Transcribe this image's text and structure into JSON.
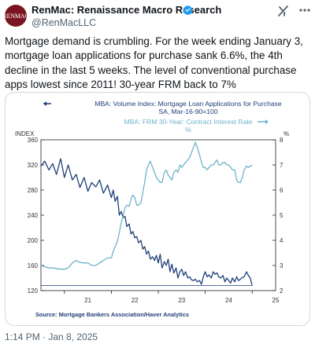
{
  "author": {
    "display_name": "RenMac: Renaissance Macro Research",
    "handle": "@RenMacLLC",
    "avatar_text": "RENMAC",
    "verified_icon": "verified-badge-icon",
    "brand_color": "#7a1420"
  },
  "tweet": {
    "text": "Mortgage demand is crumbling. For the week ending January 3, mortgage loan applications for purchase sank 6.6%, the 4th decline in the last 5 weeks. The level of conventional purchase apps lowest since 2011! 30-year FRM back to 7%",
    "timestamp": "1:14 PM · Jan 8, 2025"
  },
  "icons": {
    "grok": "grok-icon",
    "more": "more-icon"
  },
  "colors": {
    "text": "#0f1419",
    "secondary": "#536471",
    "series_volume": "#1f3f78",
    "series_rate": "#6fb3c8"
  },
  "chart_data": {
    "type": "line",
    "legend": [
      "MBA: Volume Index: Mortgage Loan Applications for Purchase",
      "SA, Mar-16-90=100",
      "MBA: FRM 30-Year: Contract Interest Rate",
      "%"
    ],
    "left_axis_title": "INDEX",
    "right_axis_title": "%",
    "left_ticks": [
      "360",
      "320",
      "280",
      "240",
      "200",
      "160",
      "120"
    ],
    "right_ticks": [
      "8",
      "7",
      "6",
      "5",
      "4",
      "3",
      "2"
    ],
    "x_ticks": [
      "21",
      "22",
      "23",
      "24",
      "25"
    ],
    "source": "Source:  Mortgage Bankers Association/Haver Analytics",
    "xlim": [
      2020.5,
      2025.5
    ],
    "ylim_left": [
      120,
      360
    ],
    "ylim_right": [
      2,
      8
    ],
    "grid": false,
    "series": [
      {
        "name": "MBA: Volume Index: Mortgage Loan Applications for Purchase",
        "axis": "left",
        "x": [
          2020.5,
          2020.58,
          2020.67,
          2020.75,
          2020.83,
          2020.92,
          2021.0,
          2021.08,
          2021.17,
          2021.25,
          2021.33,
          2021.42,
          2021.5,
          2021.58,
          2021.67,
          2021.75,
          2021.83,
          2021.92,
          2022.0,
          2022.04,
          2022.08,
          2022.13,
          2022.17,
          2022.21,
          2022.25,
          2022.29,
          2022.33,
          2022.38,
          2022.42,
          2022.46,
          2022.5,
          2022.54,
          2022.58,
          2022.63,
          2022.67,
          2022.71,
          2022.75,
          2022.79,
          2022.83,
          2022.88,
          2022.92,
          2022.96,
          2023.0,
          2023.04,
          2023.08,
          2023.13,
          2023.17,
          2023.21,
          2023.25,
          2023.29,
          2023.33,
          2023.38,
          2023.42,
          2023.46,
          2023.5,
          2023.54,
          2023.58,
          2023.63,
          2023.67,
          2023.71,
          2023.75,
          2023.79,
          2023.83,
          2023.88,
          2023.92,
          2023.96,
          2024.0,
          2024.04,
          2024.08,
          2024.13,
          2024.17,
          2024.21,
          2024.25,
          2024.29,
          2024.33,
          2024.38,
          2024.42,
          2024.46,
          2024.5,
          2024.54,
          2024.58,
          2024.63,
          2024.67,
          2024.71,
          2024.75,
          2024.79,
          2024.83,
          2024.88,
          2024.92,
          2024.96,
          2025.0
        ],
        "values": [
          318,
          326,
          312,
          322,
          305,
          330,
          300,
          320,
          296,
          305,
          284,
          300,
          278,
          292,
          285,
          296,
          275,
          288,
          268,
          280,
          262,
          270,
          240,
          246,
          236,
          238,
          222,
          226,
          210,
          214,
          204,
          206,
          196,
          200,
          186,
          190,
          178,
          183,
          170,
          174,
          168,
          176,
          164,
          178,
          156,
          166,
          160,
          170,
          150,
          162,
          148,
          156,
          140,
          150,
          154,
          144,
          150,
          140,
          142,
          137,
          136,
          138,
          134,
          136,
          130,
          142,
          150,
          142,
          145,
          140,
          150,
          146,
          148,
          142,
          140,
          144,
          134,
          140,
          136,
          132,
          140,
          134,
          142,
          136,
          138,
          141,
          142,
          150,
          144,
          140,
          128
        ]
      },
      {
        "name": "MBA: FRM 30-Year: Contract Interest Rate",
        "axis": "right",
        "x": [
          2020.5,
          2020.58,
          2020.67,
          2020.75,
          2020.83,
          2020.92,
          2021.0,
          2021.08,
          2021.17,
          2021.25,
          2021.33,
          2021.42,
          2021.5,
          2021.58,
          2021.67,
          2021.75,
          2021.83,
          2021.92,
          2022.0,
          2022.04,
          2022.08,
          2022.13,
          2022.17,
          2022.21,
          2022.25,
          2022.29,
          2022.33,
          2022.38,
          2022.42,
          2022.46,
          2022.5,
          2022.54,
          2022.58,
          2022.63,
          2022.67,
          2022.71,
          2022.75,
          2022.79,
          2022.83,
          2022.88,
          2022.92,
          2022.96,
          2023.0,
          2023.04,
          2023.08,
          2023.13,
          2023.17,
          2023.21,
          2023.25,
          2023.29,
          2023.33,
          2023.38,
          2023.42,
          2023.46,
          2023.5,
          2023.54,
          2023.58,
          2023.63,
          2023.67,
          2023.71,
          2023.75,
          2023.79,
          2023.83,
          2023.88,
          2023.92,
          2023.96,
          2024.0,
          2024.04,
          2024.08,
          2024.13,
          2024.17,
          2024.21,
          2024.25,
          2024.29,
          2024.33,
          2024.38,
          2024.42,
          2024.46,
          2024.5,
          2024.54,
          2024.58,
          2024.63,
          2024.67,
          2024.71,
          2024.75,
          2024.79,
          2024.83,
          2024.88,
          2024.92,
          2024.96,
          2025.0
        ],
        "values": [
          3.0,
          2.95,
          2.9,
          2.9,
          2.88,
          2.85,
          2.85,
          2.9,
          3.1,
          3.2,
          3.12,
          3.1,
          3.1,
          3.0,
          3.0,
          3.1,
          3.2,
          3.3,
          3.3,
          3.55,
          3.75,
          3.95,
          4.3,
          4.7,
          4.95,
          5.3,
          5.4,
          5.35,
          5.65,
          5.8,
          5.7,
          5.4,
          5.4,
          5.5,
          5.9,
          6.3,
          6.8,
          7.0,
          7.15,
          6.9,
          6.7,
          6.5,
          6.4,
          6.3,
          6.3,
          6.7,
          6.8,
          6.6,
          6.5,
          6.4,
          6.7,
          6.8,
          6.7,
          7.0,
          6.9,
          7.0,
          7.1,
          7.2,
          7.3,
          7.5,
          7.7,
          7.9,
          7.7,
          7.4,
          7.1,
          6.9,
          6.9,
          6.8,
          6.9,
          7.0,
          7.0,
          7.1,
          7.2,
          7.0,
          7.0,
          7.1,
          7.1,
          7.0,
          7.0,
          6.9,
          6.8,
          6.8,
          6.4,
          6.3,
          6.3,
          6.5,
          6.8,
          6.95,
          6.9,
          6.95,
          7.0
        ]
      }
    ]
  }
}
